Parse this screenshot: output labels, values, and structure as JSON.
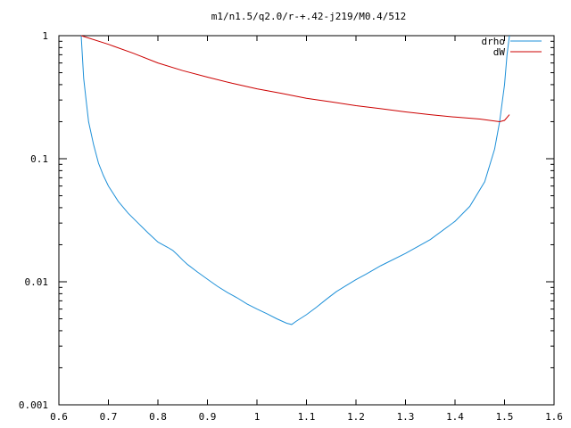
{
  "chart_data": {
    "type": "line",
    "title": "m1/n1.5/q2.0/r-+.42-j219/M0.4/512",
    "xlabel": "",
    "ylabel": "",
    "xlim": [
      0.6,
      1.6
    ],
    "ylim": [
      0.001,
      1
    ],
    "yscale": "log",
    "grid": false,
    "legend_position": "top-right",
    "x_ticks": [
      0.6,
      0.7,
      0.8,
      0.9,
      1.0,
      1.1,
      1.2,
      1.3,
      1.4,
      1.5,
      1.6
    ],
    "x_tick_labels": [
      "0.6",
      "0.7",
      "0.8",
      "0.9",
      "1",
      "1.1",
      "1.2",
      "1.3",
      "1.4",
      "1.5",
      "1.6"
    ],
    "y_ticks": [
      0.001,
      0.01,
      0.1,
      1
    ],
    "y_tick_labels": [
      "0.001",
      "0.01",
      "0.1",
      "1"
    ],
    "series": [
      {
        "name": "drho",
        "color": "#1e90d8",
        "x": [
          0.645,
          0.65,
          0.655,
          0.66,
          0.67,
          0.68,
          0.69,
          0.7,
          0.72,
          0.74,
          0.76,
          0.78,
          0.8,
          0.82,
          0.83,
          0.84,
          0.85,
          0.86,
          0.88,
          0.9,
          0.92,
          0.94,
          0.96,
          0.98,
          1.0,
          1.02,
          1.04,
          1.06,
          1.07,
          1.08,
          1.1,
          1.12,
          1.14,
          1.16,
          1.18,
          1.2,
          1.22,
          1.25,
          1.3,
          1.35,
          1.4,
          1.43,
          1.46,
          1.48,
          1.49,
          1.5,
          1.505,
          1.51
        ],
        "y": [
          1.0,
          0.45,
          0.3,
          0.2,
          0.13,
          0.092,
          0.073,
          0.06,
          0.045,
          0.036,
          0.03,
          0.025,
          0.021,
          0.019,
          0.018,
          0.0165,
          0.015,
          0.0138,
          0.012,
          0.0105,
          0.0092,
          0.0082,
          0.0074,
          0.0066,
          0.006,
          0.0055,
          0.005,
          0.0046,
          0.0045,
          0.0048,
          0.0054,
          0.0062,
          0.0072,
          0.0083,
          0.0093,
          0.0104,
          0.0115,
          0.0135,
          0.017,
          0.022,
          0.031,
          0.041,
          0.065,
          0.12,
          0.2,
          0.4,
          0.7,
          1.0
        ]
      },
      {
        "name": "dW",
        "color": "#cc0000",
        "x": [
          0.645,
          0.7,
          0.75,
          0.8,
          0.85,
          0.9,
          0.95,
          1.0,
          1.05,
          1.1,
          1.15,
          1.2,
          1.25,
          1.3,
          1.35,
          1.4,
          1.45,
          1.49,
          1.5,
          1.51
        ],
        "y": [
          1.0,
          0.85,
          0.72,
          0.6,
          0.52,
          0.46,
          0.41,
          0.37,
          0.34,
          0.31,
          0.29,
          0.27,
          0.255,
          0.24,
          0.228,
          0.218,
          0.21,
          0.2,
          0.205,
          0.228
        ]
      }
    ]
  }
}
